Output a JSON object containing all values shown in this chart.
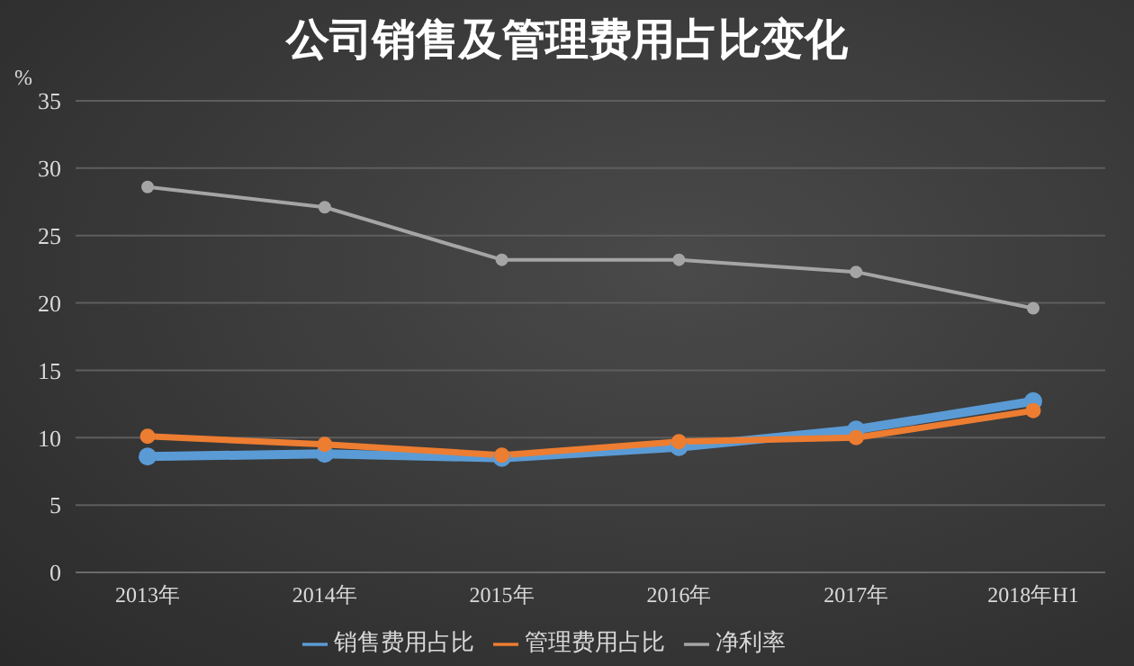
{
  "chart_data": {
    "type": "line",
    "title": "公司销售及管理费用占比变化",
    "ylabel": "%",
    "categories": [
      "2013年",
      "2014年",
      "2015年",
      "2016年",
      "2017年",
      "2018年H1"
    ],
    "series": [
      {
        "name": "销售费用占比",
        "color": "#5b9bd5",
        "values": [
          8.6,
          8.8,
          8.5,
          9.3,
          10.6,
          12.7
        ]
      },
      {
        "name": "管理费用占比",
        "color": "#ed7d31",
        "values": [
          10.1,
          9.5,
          8.7,
          9.7,
          10.0,
          12.0
        ]
      },
      {
        "name": "净利率",
        "color": "#a5a5a5",
        "values": [
          28.6,
          27.1,
          23.2,
          23.2,
          22.3,
          19.6
        ]
      }
    ],
    "ylim": [
      0,
      35
    ],
    "yticks": [
      0,
      5,
      10,
      15,
      20,
      25,
      30,
      35
    ],
    "grid": "y",
    "legend": "bottom",
    "marker": "circle",
    "line_style": "solid"
  }
}
